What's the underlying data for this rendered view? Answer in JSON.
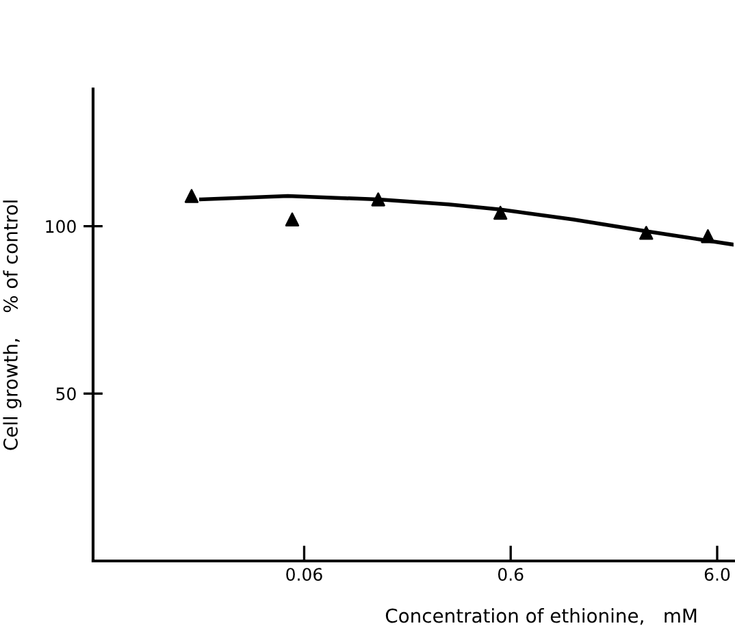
{
  "chart_data": {
    "type": "scatter",
    "xlabel": "Concentration of ethionine,   mM",
    "ylabel": "Cell growth,    % of control",
    "log": "x",
    "xlim": [
      0.0057,
      7.2
    ],
    "xticks": [
      {
        "value": 0.06,
        "label": "0.06"
      },
      {
        "value": 0.6,
        "label": "0.6"
      },
      {
        "value": 6.0,
        "label": "6.0"
      }
    ],
    "ylim": [
      0,
      141
    ],
    "yticks": [
      50,
      100
    ],
    "grid": false,
    "legend": false,
    "series": [
      {
        "color": "#000000",
        "marker": "triangle",
        "x": [
          0.0171,
          0.0525,
          0.137,
          0.535,
          2.72,
          5.41
        ],
        "values": [
          109,
          102,
          108,
          104,
          98,
          97
        ]
      },
      {
        "type": "line",
        "color": "#000000",
        "marker": "none",
        "line_style": "solid",
        "x": [
          0.019,
          0.05,
          0.137,
          0.3,
          0.535,
          1.2,
          2.72,
          7.2
        ],
        "values": [
          108,
          109,
          108,
          106.5,
          105,
          102,
          98.5,
          94.5
        ]
      }
    ]
  }
}
